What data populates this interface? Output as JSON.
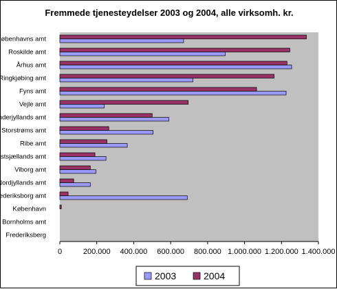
{
  "chart_data": {
    "type": "bar",
    "orientation": "horizontal",
    "title": "Fremmede tjenesteydelser 2003 og 2004, alle virksomh. kr.",
    "xlabel": "",
    "ylabel": "",
    "xlim": [
      0,
      1400000
    ],
    "x_ticks": [
      0,
      200000,
      400000,
      600000,
      800000,
      1000000,
      1200000,
      1400000
    ],
    "x_tick_labels": [
      "0",
      "200.000",
      "400.000",
      "600.000",
      "800.000",
      "1.000.000",
      "1.200.000",
      "1.400.000"
    ],
    "categories": [
      "Københavns amt",
      "Roskilde amt",
      "Århus amt",
      "Ringkjøbing amt",
      "Fyns amt",
      "Vejle amt",
      "Sønderjyllands amt",
      "Storstrøms amt",
      "Ribe amt",
      "Vestsjællands amt",
      "Viborg amt",
      "Nordjyllands amt",
      "Frederiksborg amt",
      "København",
      "Bornholms amt",
      "Frederiksberg"
    ],
    "series": [
      {
        "name": "2003",
        "color": "#9999ff",
        "values": [
          670000,
          895000,
          1255000,
          720000,
          1225000,
          240000,
          590000,
          505000,
          365000,
          250000,
          195000,
          165000,
          690000,
          0,
          0,
          0
        ]
      },
      {
        "name": "2004",
        "color": "#993366",
        "values": [
          1335000,
          1245000,
          1230000,
          1160000,
          1065000,
          695000,
          500000,
          265000,
          255000,
          190000,
          165000,
          75000,
          45000,
          8000,
          0,
          0
        ]
      }
    ],
    "grid": false,
    "plot_background": "#c0c0c0",
    "legend_position": "bottom"
  }
}
